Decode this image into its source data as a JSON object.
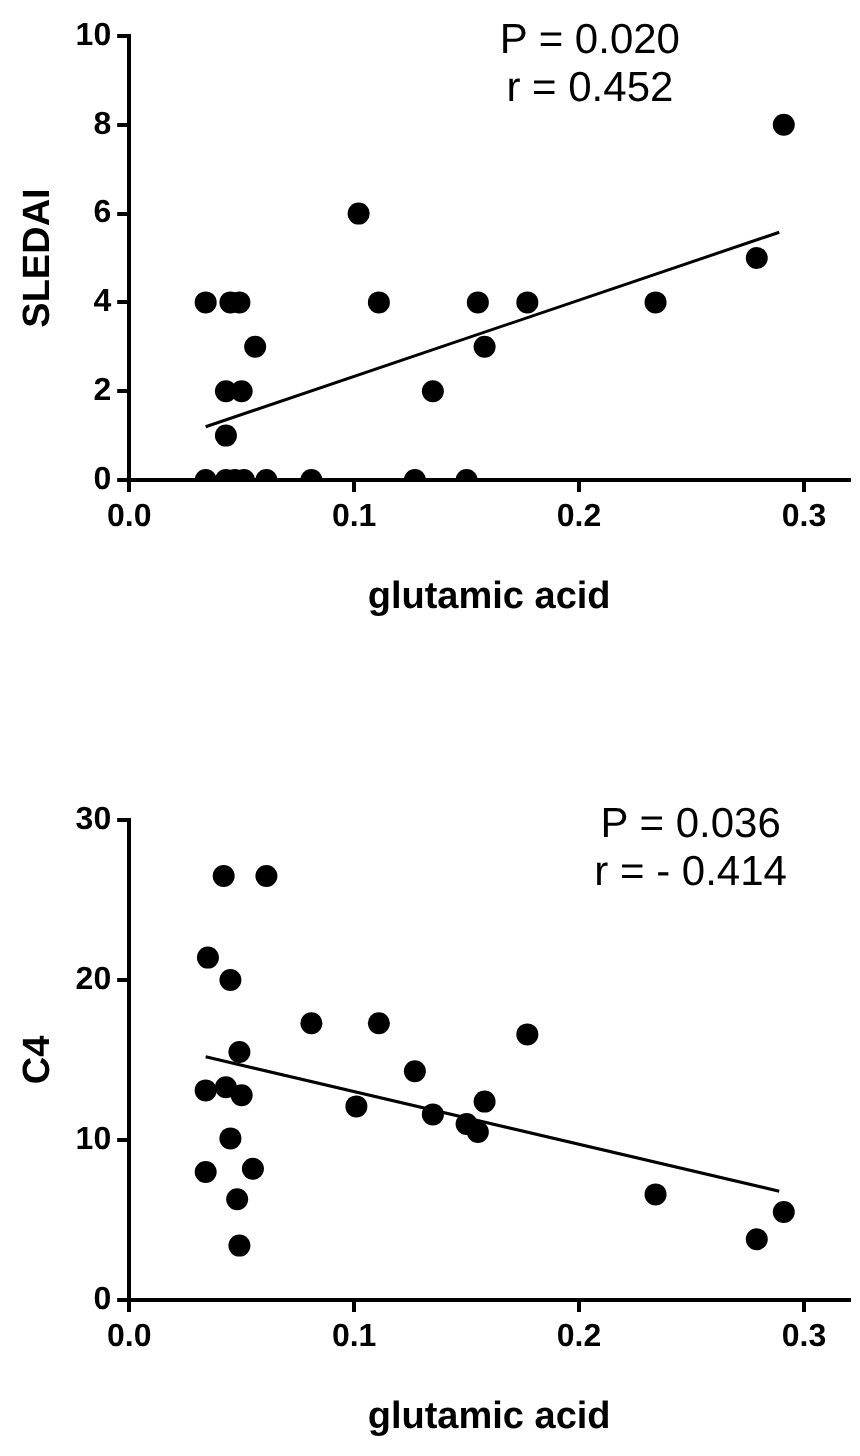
{
  "chart_data": [
    {
      "type": "scatter",
      "xlabel": "glutamic acid",
      "ylabel": "SLEDAI",
      "marker": "circle",
      "grid": false,
      "legend": false,
      "annotations": [
        "P = 0.020",
        "r = 0.452"
      ],
      "xlim": [
        0,
        0.32
      ],
      "xticks": [
        {
          "value": 0,
          "label": "0.0"
        },
        0.1,
        0.2,
        0.3
      ],
      "ylim": [
        0,
        10
      ],
      "yticks": [
        0,
        2,
        4,
        6,
        8,
        10
      ],
      "series": [
        {
          "color": "#000000",
          "x": [
            0.034,
            0.045,
            0.049,
            0.056,
            0.043,
            0.05,
            0.043,
            0.034,
            0.043,
            0.047,
            0.051,
            0.061,
            0.081,
            0.127,
            0.15,
            0.102,
            0.111,
            0.135,
            0.155,
            0.158,
            0.177,
            0.234,
            0.279,
            0.291
          ],
          "values": [
            4,
            4,
            4,
            3,
            2,
            2,
            1,
            0,
            0,
            0,
            0,
            0,
            0,
            0,
            0,
            6,
            4,
            2,
            4,
            3,
            4,
            4,
            5,
            8
          ]
        },
        {
          "type": "line",
          "color": "#000000",
          "marker": "none",
          "x": [
            0.034,
            0.289
          ],
          "values": [
            1.2,
            5.58
          ]
        }
      ]
    },
    {
      "type": "scatter",
      "xlabel": "glutamic acid",
      "ylabel": "C4",
      "marker": "circle",
      "grid": false,
      "legend": false,
      "annotations": [
        "P = 0.036",
        "r = - 0.414"
      ],
      "xlim": [
        0,
        0.32
      ],
      "xticks": [
        {
          "value": 0,
          "label": "0.0"
        },
        0.1,
        0.2,
        0.3
      ],
      "ylim": [
        0,
        30
      ],
      "yticks": [
        0,
        10,
        20,
        30
      ],
      "series": [
        {
          "color": "#000000",
          "x": [
            0.042,
            0.061,
            0.035,
            0.045,
            0.081,
            0.111,
            0.177,
            0.049,
            0.127,
            0.034,
            0.043,
            0.05,
            0.101,
            0.158,
            0.135,
            0.15,
            0.155,
            0.045,
            0.034,
            0.055,
            0.048,
            0.234,
            0.049,
            0.279,
            0.291
          ],
          "values": [
            26.5,
            26.5,
            21.4,
            20,
            17.3,
            17.3,
            16.6,
            15.5,
            14.3,
            13.1,
            13.3,
            12.8,
            12.1,
            12.4,
            11.6,
            11,
            10.5,
            10.1,
            8,
            8.2,
            6.3,
            6.6,
            3.4,
            3.8,
            5.5
          ]
        },
        {
          "type": "line",
          "color": "#000000",
          "marker": "none",
          "x": [
            0.034,
            0.289
          ],
          "values": [
            15.2,
            6.8
          ]
        }
      ]
    }
  ]
}
